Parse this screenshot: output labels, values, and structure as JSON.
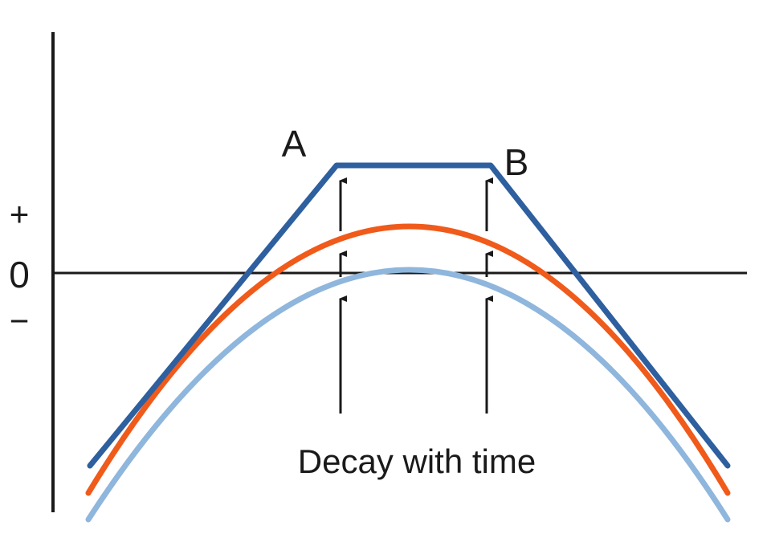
{
  "y_axis_labels": {
    "plus": "+",
    "zero": "0",
    "minus": "−"
  },
  "point_labels": {
    "a": "A",
    "b": "B"
  },
  "caption": "Decay with time",
  "colors": {
    "axis": "#1a1a1a",
    "curve_top": "#2e5f9e",
    "curve_middle": "#f05a1a",
    "curve_bottom": "#8fb6dc",
    "arrows": "#1a1a1a"
  }
}
